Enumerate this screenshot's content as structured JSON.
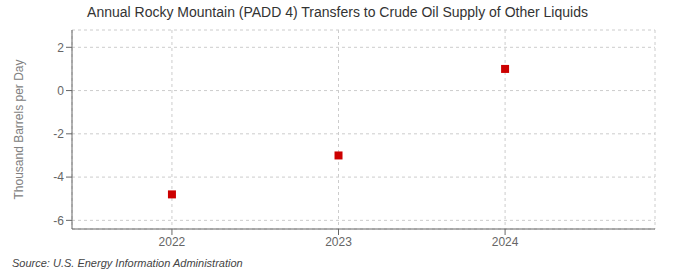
{
  "chart_data": {
    "type": "scatter",
    "title": "Annual Rocky Mountain (PADD 4) Transfers to Crude Oil Supply of Other Liquids",
    "ylabel": "Thousand Barrels per Day",
    "annotations": [
      "Source: U.S. Energy Information Administration"
    ],
    "x": [
      2022,
      2023,
      2024
    ],
    "values": [
      -4.8,
      -3.0,
      1.0
    ],
    "color": "#cc0000",
    "marker": "square",
    "xlim": [
      2021.4,
      2024.9
    ],
    "ylim": [
      -6.4,
      2.8
    ],
    "xticks": [
      2022,
      2023,
      2024
    ],
    "yticks": [
      -6,
      -4,
      -2,
      0,
      2
    ],
    "grid": true
  }
}
